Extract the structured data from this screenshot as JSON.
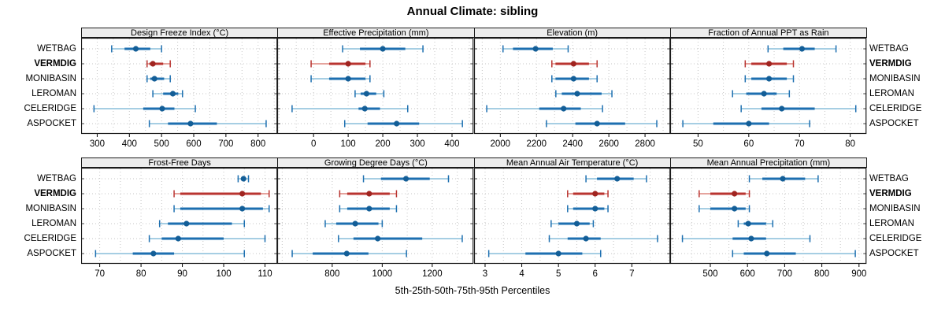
{
  "title": "Annual Climate: sibling",
  "xlabel": "5th-25th-50th-75th-95th Percentiles",
  "sites": [
    "WETBAG",
    "VERMDIG",
    "MONIBASIN",
    "LEROMAN",
    "CELERIDGE",
    "ASPOCKET"
  ],
  "highlight_site": "VERMDIG",
  "colors": {
    "blue": "#1d6fb0",
    "blue_light": "#a6cee3",
    "blue_dot": "#135e97",
    "red": "#b93430",
    "red_light": "#e5a49e",
    "red_dot": "#a02420",
    "grid": "#c6c6c6",
    "strip_bg": "#ededed",
    "panel_border": "#1a1a1a"
  },
  "chart_data": {
    "type": "dotplot-percentiles",
    "percentiles": [
      5,
      25,
      50,
      75,
      95
    ],
    "legend_note": "5th-25th-50th-75th-95th Percentiles",
    "layout": {
      "rows": 2,
      "cols": 4
    },
    "panels": [
      {
        "title": "Design Freeze Index (°C)",
        "xlim": [
          250,
          860
        ],
        "ticks": [
          300,
          400,
          500,
          600,
          700,
          800
        ],
        "grid_step": 50,
        "series": [
          {
            "site": "WETBAG",
            "values": [
              345,
              385,
              420,
              465,
              500
            ]
          },
          {
            "site": "VERMDIG",
            "values": [
              455,
              462,
              473,
              505,
              527
            ]
          },
          {
            "site": "MONIBASIN",
            "values": [
              455,
              465,
              478,
              508,
              527
            ]
          },
          {
            "site": "LEROMAN",
            "values": [
              473,
              505,
              535,
              552,
              565
            ]
          },
          {
            "site": "CELERIDGE",
            "values": [
              290,
              443,
              502,
              540,
              605
            ]
          },
          {
            "site": "ASPOCKET",
            "values": [
              462,
              520,
              590,
              672,
              825
            ]
          }
        ]
      },
      {
        "title": "Effective Precipitation (mm)",
        "xlim": [
          -105,
          462
        ],
        "ticks": [
          0,
          100,
          200,
          300,
          400
        ],
        "grid_step": 50,
        "series": [
          {
            "site": "WETBAG",
            "values": [
              84,
              134,
              200,
              265,
              316
            ]
          },
          {
            "site": "VERMDIG",
            "values": [
              -7,
              45,
              100,
              150,
              163
            ]
          },
          {
            "site": "MONIBASIN",
            "values": [
              -7,
              45,
              100,
              150,
              163
            ]
          },
          {
            "site": "LEROMAN",
            "values": [
              120,
              136,
              153,
              181,
              203
            ]
          },
          {
            "site": "CELERIDGE",
            "values": [
              -62,
              130,
              148,
              192,
              272
            ]
          },
          {
            "site": "ASPOCKET",
            "values": [
              90,
              156,
              240,
              305,
              430
            ]
          }
        ]
      },
      {
        "title": "Elevation (m)",
        "xlim": [
          1855,
          2940
        ],
        "ticks": [
          2000,
          2200,
          2400,
          2600,
          2800
        ],
        "grid_step": 100,
        "series": [
          {
            "site": "WETBAG",
            "values": [
              2015,
              2070,
              2195,
              2290,
              2375
            ]
          },
          {
            "site": "VERMDIG",
            "values": [
              2285,
              2305,
              2405,
              2490,
              2535
            ]
          },
          {
            "site": "MONIBASIN",
            "values": [
              2285,
              2305,
              2405,
              2490,
              2535
            ]
          },
          {
            "site": "LEROMAN",
            "values": [
              2307,
              2340,
              2425,
              2560,
              2617
            ]
          },
          {
            "site": "CELERIDGE",
            "values": [
              1925,
              2215,
              2350,
              2445,
              2565
            ]
          },
          {
            "site": "ASPOCKET",
            "values": [
              2255,
              2415,
              2535,
              2690,
              2865
            ]
          }
        ]
      },
      {
        "title": "Fraction of Annual PPT as Rain",
        "xlim": [
          44.5,
          83.2
        ],
        "ticks": [
          50,
          60,
          70,
          80
        ],
        "grid_step": 5,
        "series": [
          {
            "site": "WETBAG",
            "values": [
              63.8,
              66.8,
              70.5,
              73,
              77.2
            ]
          },
          {
            "site": "VERMDIG",
            "values": [
              59.3,
              60.5,
              64,
              67.5,
              68.8
            ]
          },
          {
            "site": "MONIBASIN",
            "values": [
              59.3,
              60.5,
              64,
              67.5,
              68.8
            ]
          },
          {
            "site": "LEROMAN",
            "values": [
              56.8,
              59.5,
              63,
              65.5,
              68
            ]
          },
          {
            "site": "CELERIDGE",
            "values": [
              58.5,
              62.5,
              66.5,
              73,
              81.1
            ]
          },
          {
            "site": "ASPOCKET",
            "values": [
              47,
              53,
              60,
              64,
              72
            ]
          }
        ]
      },
      {
        "title": "Frost-Free Days",
        "xlim": [
          65.5,
          113
        ],
        "ticks": [
          70,
          80,
          90,
          100,
          110
        ],
        "grid_step": 5,
        "series": [
          {
            "site": "WETBAG",
            "values": [
              103.5,
              104.2,
              104.8,
              105.4,
              106
            ]
          },
          {
            "site": "VERMDIG",
            "values": [
              88,
              89.5,
              104.5,
              109,
              111
            ]
          },
          {
            "site": "MONIBASIN",
            "values": [
              88,
              89.5,
              104.5,
              109.5,
              111
            ]
          },
          {
            "site": "LEROMAN",
            "values": [
              84.5,
              86.5,
              91,
              102,
              105
            ]
          },
          {
            "site": "CELERIDGE",
            "values": [
              82,
              85,
              89,
              100,
              110
            ]
          },
          {
            "site": "ASPOCKET",
            "values": [
              69,
              78,
              83,
              88,
              105
            ]
          }
        ]
      },
      {
        "title": "Growing Degree Days (°C)",
        "xlim": [
          580,
          1365
        ],
        "ticks": [
          800,
          1000,
          1200
        ],
        "grid_step": 100,
        "series": [
          {
            "site": "WETBAG",
            "values": [
              925,
              995,
              1095,
              1190,
              1265
            ]
          },
          {
            "site": "VERMDIG",
            "values": [
              830,
              860,
              948,
              1030,
              1057
            ]
          },
          {
            "site": "MONIBASIN",
            "values": [
              830,
              860,
              948,
              1030,
              1057
            ]
          },
          {
            "site": "LEROMAN",
            "values": [
              772,
              816,
              892,
              985,
              1000
            ]
          },
          {
            "site": "CELERIDGE",
            "values": [
              825,
              885,
              982,
              1160,
              1320
            ]
          },
          {
            "site": "ASPOCKET",
            "values": [
              640,
              722,
              858,
              945,
              1097
            ]
          }
        ]
      },
      {
        "title": "Mean Annual Air Temperature (°C)",
        "xlim": [
          2.7,
          8.05
        ],
        "ticks": [
          3,
          4,
          5,
          6,
          7
        ],
        "grid_step": 0.5,
        "series": [
          {
            "site": "WETBAG",
            "values": [
              5.75,
              6.05,
              6.6,
              7.05,
              7.4
            ]
          },
          {
            "site": "VERMDIG",
            "values": [
              5.25,
              5.4,
              6.0,
              6.25,
              6.35
            ]
          },
          {
            "site": "MONIBASIN",
            "values": [
              5.25,
              5.4,
              6.0,
              6.25,
              6.35
            ]
          },
          {
            "site": "LEROMAN",
            "values": [
              4.8,
              5.0,
              5.5,
              5.85,
              5.95
            ]
          },
          {
            "site": "CELERIDGE",
            "values": [
              4.75,
              5.25,
              5.75,
              6.15,
              7.7
            ]
          },
          {
            "site": "ASPOCKET",
            "values": [
              3.1,
              4.1,
              5.0,
              5.65,
              6.15
            ]
          }
        ]
      },
      {
        "title": "Mean Annual Precipitation (mm)",
        "xlim": [
          392,
          920
        ],
        "ticks": [
          500,
          600,
          700,
          800,
          900
        ],
        "grid_step": 50,
        "series": [
          {
            "site": "WETBAG",
            "values": [
              605,
              640,
              695,
              755,
              790
            ]
          },
          {
            "site": "VERMDIG",
            "values": [
              470,
              500,
              565,
              595,
              605
            ]
          },
          {
            "site": "MONIBASIN",
            "values": [
              470,
              500,
              565,
              595,
              605
            ]
          },
          {
            "site": "LEROMAN",
            "values": [
              575,
              590,
              602,
              650,
              668
            ]
          },
          {
            "site": "CELERIDGE",
            "values": [
              425,
              560,
              610,
              650,
              768
            ]
          },
          {
            "site": "ASPOCKET",
            "values": [
              560,
              590,
              652,
              730,
              890
            ]
          }
        ]
      }
    ]
  }
}
